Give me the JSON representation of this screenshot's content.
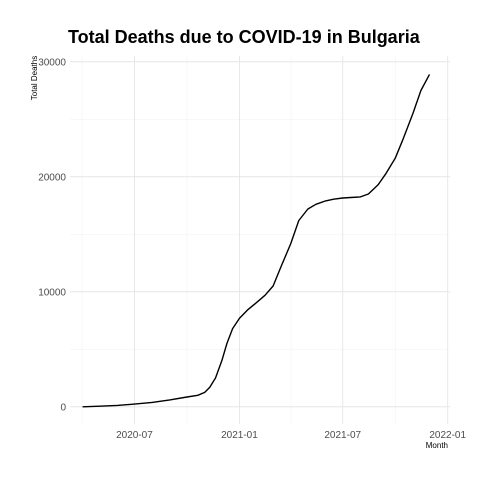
{
  "chart_data": {
    "type": "line",
    "title": "Total Deaths due to COVID-19 in Bulgaria",
    "xlabel": "Month",
    "ylabel": "Total Deaths",
    "x_ticks": [
      "2020-07",
      "2021-01",
      "2021-07",
      "2022-01"
    ],
    "y_ticks": [
      0,
      10000,
      20000,
      30000
    ],
    "xlim": [
      "2020-03-10",
      "2022-01-05"
    ],
    "ylim": [
      -1500,
      30500
    ],
    "grid": true,
    "x": [
      "2020-04-01",
      "2020-05-01",
      "2020-06-01",
      "2020-07-01",
      "2020-08-01",
      "2020-09-01",
      "2020-10-01",
      "2020-10-20",
      "2020-11-01",
      "2020-11-10",
      "2020-11-20",
      "2020-12-01",
      "2020-12-10",
      "2020-12-20",
      "2021-01-01",
      "2021-01-15",
      "2021-02-01",
      "2021-02-15",
      "2021-03-01",
      "2021-03-15",
      "2021-04-01",
      "2021-04-15",
      "2021-05-01",
      "2021-05-15",
      "2021-06-01",
      "2021-06-15",
      "2021-07-01",
      "2021-07-15",
      "2021-08-01",
      "2021-08-15",
      "2021-09-01",
      "2021-09-15",
      "2021-10-01",
      "2021-10-15",
      "2021-11-01",
      "2021-11-15",
      "2021-11-30"
    ],
    "series": [
      {
        "values": [
          0,
          50,
          120,
          230,
          380,
          600,
          850,
          1000,
          1250,
          1700,
          2500,
          4000,
          5500,
          6800,
          7700,
          8400,
          9100,
          9700,
          10500,
          12200,
          14200,
          16200,
          17200,
          17600,
          17900,
          18050,
          18150,
          18200,
          18250,
          18500,
          19300,
          20300,
          21600,
          23300,
          25500,
          27500,
          28900
        ]
      }
    ]
  }
}
